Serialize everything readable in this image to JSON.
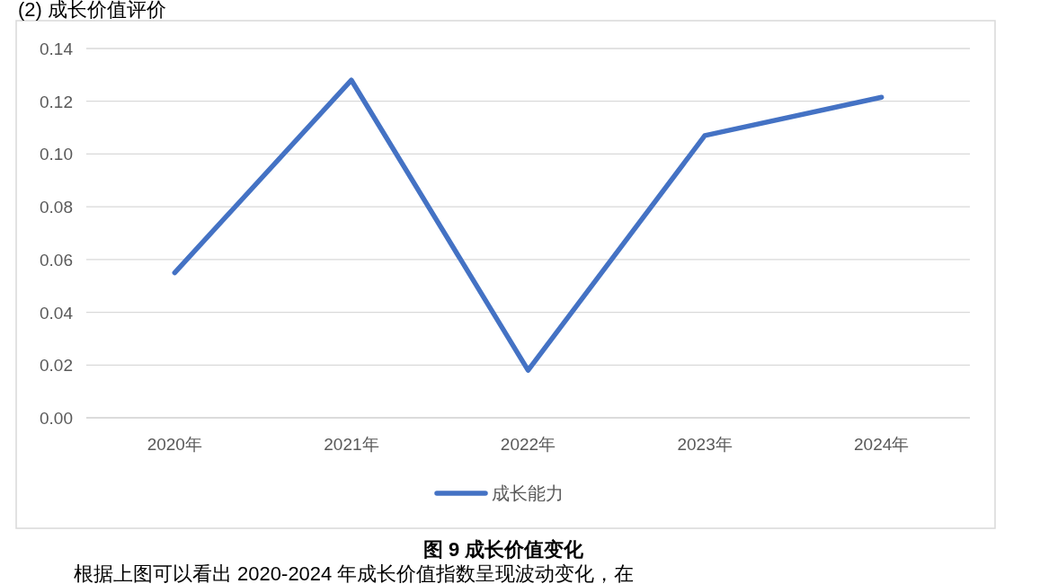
{
  "chart_data": {
    "type": "line",
    "categories": [
      "2020年",
      "2021年",
      "2022年",
      "2023年",
      "2024年"
    ],
    "series": [
      {
        "name": "成长能力",
        "color": "#4472c4",
        "values": [
          0.055,
          0.128,
          0.018,
          0.107,
          0.1215
        ]
      }
    ],
    "ylim": [
      0,
      0.14
    ],
    "yticks": [
      {
        "value": 0,
        "label": "0.00"
      },
      {
        "value": 0.02,
        "label": "0.02"
      },
      {
        "value": 0.04,
        "label": "0.04"
      },
      {
        "value": 0.06,
        "label": "0.06"
      },
      {
        "value": 0.08,
        "label": "0.08"
      },
      {
        "value": 0.1,
        "label": "0.10"
      },
      {
        "value": 0.12,
        "label": "0.12"
      },
      {
        "value": 0.14,
        "label": "0.14"
      }
    ],
    "grid": "y",
    "legend": "bottom",
    "marker": "none",
    "line_style": "solid",
    "annotations": [
      "(2) 成长价值评价",
      "图 9 成长价值变化",
      "根据上图可以看出 2020-2024 年成长价值指数呈现波动变化，在"
    ]
  }
}
